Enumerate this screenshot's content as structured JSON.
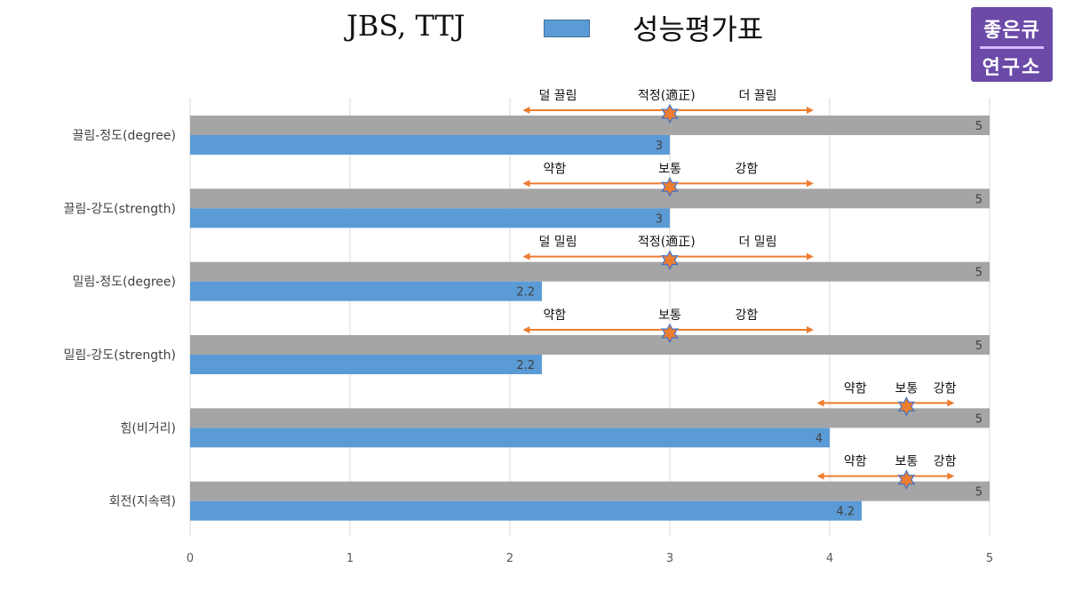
{
  "header": {
    "title_left": "JBS, TTJ",
    "title_right": "성능평가표",
    "legend_color": "#5b9bd5"
  },
  "logo": {
    "line1": "좋은큐",
    "line2": "연구소",
    "bg_color": "#6b4aa8"
  },
  "chart_data": {
    "type": "bar",
    "orientation": "horizontal",
    "categories": [
      "끌림-정도(degree)",
      "끌림-강도(strength)",
      "밀림-정도(degree)",
      "밀림-강도(strength)",
      "힘(비거리)",
      "회전(지속력)"
    ],
    "series": [
      {
        "color": "#a5a5a5",
        "values": [
          5,
          5,
          5,
          5,
          5,
          5
        ]
      },
      {
        "color": "#5b9bd5",
        "values": [
          3,
          3,
          2.2,
          2.2,
          4,
          4.2
        ]
      }
    ],
    "xlim": [
      0,
      5
    ],
    "xticks": [
      "0",
      "1",
      "2",
      "3",
      "4",
      "5"
    ],
    "grid": true,
    "annotations": [
      {
        "category": 0,
        "from": 2.08,
        "to": 3.9,
        "marker": 3,
        "labels": [
          {
            "text": "덜 끌림",
            "x": 2.3
          },
          {
            "text": "적정(適正)",
            "x": 2.98
          },
          {
            "text": "더 끌림",
            "x": 3.55
          }
        ]
      },
      {
        "category": 1,
        "from": 2.08,
        "to": 3.9,
        "marker": 3,
        "labels": [
          {
            "text": "약함",
            "x": 2.28
          },
          {
            "text": "보통",
            "x": 3.0
          },
          {
            "text": "강함",
            "x": 3.48
          }
        ]
      },
      {
        "category": 2,
        "from": 2.08,
        "to": 3.9,
        "marker": 3,
        "labels": [
          {
            "text": "덜 밀림",
            "x": 2.3
          },
          {
            "text": "적정(適正)",
            "x": 2.98
          },
          {
            "text": "더 밀림",
            "x": 3.55
          }
        ]
      },
      {
        "category": 3,
        "from": 2.08,
        "to": 3.9,
        "marker": 3,
        "labels": [
          {
            "text": "약함",
            "x": 2.28
          },
          {
            "text": "보통",
            "x": 3.0
          },
          {
            "text": "강함",
            "x": 3.48
          }
        ]
      },
      {
        "category": 4,
        "from": 3.92,
        "to": 4.78,
        "marker": 4.48,
        "labels": [
          {
            "text": "약함",
            "x": 4.16
          },
          {
            "text": "보통",
            "x": 4.48
          },
          {
            "text": "강함",
            "x": 4.72
          }
        ]
      },
      {
        "category": 5,
        "from": 3.92,
        "to": 4.78,
        "marker": 4.48,
        "labels": [
          {
            "text": "약함",
            "x": 4.16
          },
          {
            "text": "보통",
            "x": 4.48
          },
          {
            "text": "강함",
            "x": 4.72
          }
        ]
      }
    ],
    "annotation_color": "#ed7d31",
    "marker_color": "#ed7d31",
    "marker_edge_color": "#4472c4"
  }
}
